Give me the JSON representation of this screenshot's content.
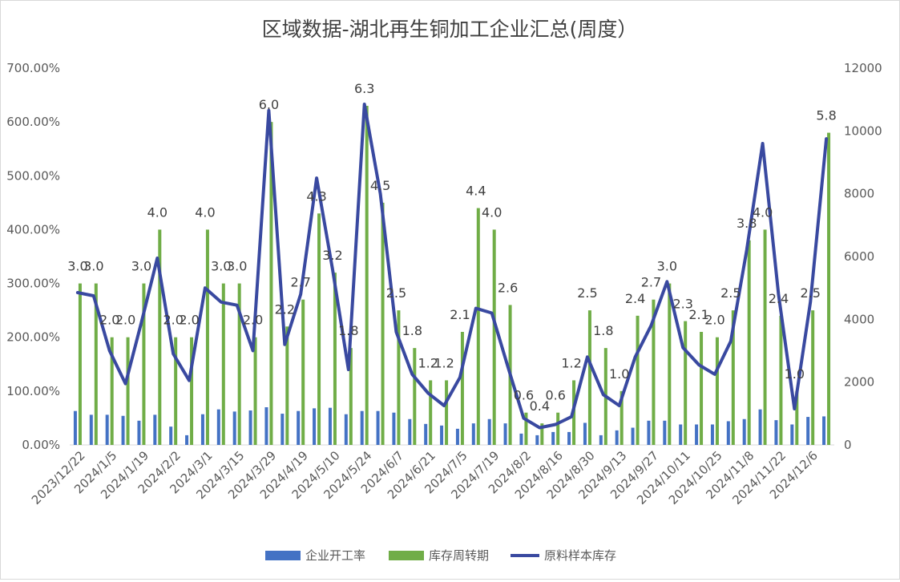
{
  "chart_data": {
    "type": "bar",
    "title": "区域数据-湖北再生铜加工企业汇总(周度）",
    "left_axis": {
      "ylim": [
        0,
        7
      ],
      "ticks": [
        "0.00%",
        "100.00%",
        "200.00%",
        "300.00%",
        "400.00%",
        "500.00%",
        "600.00%",
        "700.00%"
      ]
    },
    "right_axis": {
      "ylim": [
        0,
        12000
      ],
      "ticks": [
        "0",
        "2000",
        "4000",
        "6000",
        "8000",
        "10000",
        "12000"
      ]
    },
    "x_tick_labels": [
      "2023/12/22",
      "2024/1/5",
      "2024/1/19",
      "2024/2/2",
      "2024/3/1",
      "2024/3/15",
      "2024/3/29",
      "2024/4/19",
      "2024/5/10",
      "2024/5/24",
      "2024/6/7",
      "2024/6/21",
      "2024/7/5",
      "2024/7/19",
      "2024/8/2",
      "2024/8/16",
      "2024/8/30",
      "2024/9/13",
      "2024/9/27",
      "2024/10/11",
      "2024/10/25",
      "2024/11/8",
      "2024/11/22",
      "2024/12/6"
    ],
    "grid": false,
    "legend_position": "bottom",
    "series": [
      {
        "name": "企业开工率",
        "kind": "bar",
        "axis": "left",
        "color": "#4472C4",
        "values": [
          0.63,
          0.56,
          0.56,
          0.54,
          0.45,
          0.56,
          0.34,
          0.18,
          0.57,
          0.66,
          0.62,
          0.64,
          0.7,
          0.58,
          0.63,
          0.68,
          0.69,
          0.57,
          0.63,
          0.63,
          0.6,
          0.48,
          0.39,
          0.36,
          0.3,
          0.4,
          0.48,
          0.4,
          0.21,
          0.18,
          0.24,
          0.24,
          0.41,
          0.18,
          0.27,
          0.32,
          0.45,
          0.45,
          0.38,
          0.38,
          0.38,
          0.44,
          0.48,
          0.66,
          0.46,
          0.38,
          0.52,
          0.53
        ]
      },
      {
        "name": "库存周转期",
        "kind": "bar",
        "axis": "left",
        "color": "#70AD47",
        "values": [
          3.0,
          3.0,
          2.0,
          2.0,
          3.0,
          4.0,
          2.0,
          2.0,
          4.0,
          3.0,
          3.0,
          2.0,
          6.0,
          2.2,
          2.7,
          4.3,
          3.2,
          1.8,
          6.3,
          4.5,
          2.5,
          1.8,
          1.2,
          1.2,
          2.1,
          4.4,
          4.0,
          2.6,
          0.6,
          0.4,
          0.6,
          1.2,
          2.5,
          1.8,
          1.0,
          2.4,
          2.7,
          3.0,
          2.3,
          2.1,
          2.0,
          2.5,
          3.8,
          4.0,
          2.4,
          1.0,
          2.5,
          5.8
        ],
        "data_labels": [
          "3.0",
          "3.0",
          "2.0",
          "2.0",
          "3.0",
          "4.0",
          "2.0",
          "2.0",
          "4.0",
          "3.0",
          "3.0",
          "2.0",
          "6.0",
          "2.2",
          "2.7",
          "4.3",
          "3.2",
          "1.8",
          "6.3",
          "4.5",
          "2.5",
          "1.8",
          "1.2",
          "1.2",
          "2.1",
          "4.4",
          "4.0",
          "2.6",
          "0.6",
          "0.4",
          "0.6",
          "1.2",
          "2.5",
          "1.8",
          "1.0",
          "2.4",
          "2.7",
          "3.0",
          "2.3",
          "2.1",
          "2.0",
          "2.5",
          "3.8",
          "4.0",
          "2.4",
          "1.0",
          "2.5",
          "5.8"
        ]
      },
      {
        "name": "原料样本库存",
        "kind": "line",
        "axis": "right",
        "color": "#3949A0",
        "values": [
          4850,
          4750,
          3000,
          1950,
          3900,
          5950,
          2900,
          2050,
          5000,
          4550,
          4450,
          3000,
          10650,
          3200,
          4800,
          8500,
          5600,
          2400,
          10850,
          8000,
          3600,
          2250,
          1650,
          1250,
          2150,
          4350,
          4200,
          2500,
          850,
          550,
          650,
          900,
          2800,
          1600,
          1250,
          2800,
          3800,
          5200,
          3100,
          2550,
          2250,
          3300,
          6200,
          9600,
          4800,
          1150,
          4550,
          9750
        ]
      }
    ]
  }
}
